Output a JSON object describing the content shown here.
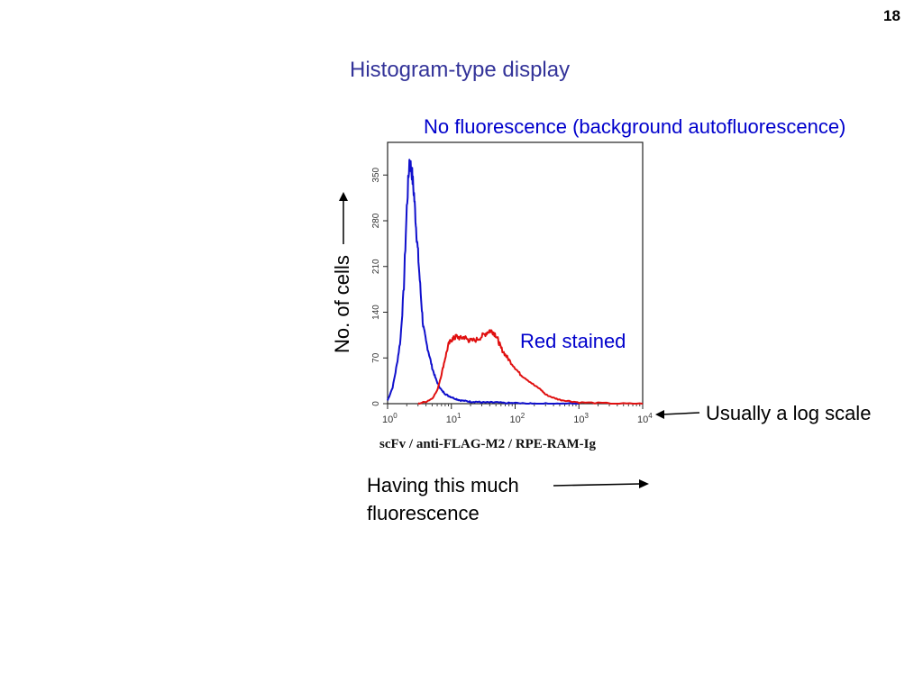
{
  "slide": {
    "page_number": "18",
    "title": "Histogram-type display",
    "annotations": {
      "no_fluorescence": "No fluorescence (background autofluorescence)",
      "red_stained": "Red stained",
      "log_scale": "Usually a log scale",
      "having_line1": "Having this much",
      "having_line2": "fluorescence",
      "y_axis_note": "No. of cells"
    },
    "colors": {
      "title": "#333399",
      "annotation_blue": "#0000cc"
    }
  },
  "chart_data": {
    "type": "line",
    "title": "",
    "xlabel": "scFv / anti-FLAG-M2 / RPE-RAM-Ig",
    "ylabel": "No. of cells",
    "x_scale": "log",
    "xlim": [
      1,
      10000
    ],
    "ylim": [
      0,
      400
    ],
    "x_ticks": [
      {
        "base": "10",
        "exp": "0"
      },
      {
        "base": "10",
        "exp": "1"
      },
      {
        "base": "10",
        "exp": "2"
      },
      {
        "base": "10",
        "exp": "3"
      },
      {
        "base": "10",
        "exp": "4"
      }
    ],
    "y_ticks": [
      "0",
      "70",
      "140",
      "210",
      "280",
      "350"
    ],
    "grid": false,
    "series": [
      {
        "color": "#1010cc",
        "x": [
          1,
          1.2,
          1.4,
          1.6,
          1.8,
          2.0,
          2.2,
          2.4,
          2.6,
          2.8,
          3.0,
          3.3,
          3.6,
          4.0,
          4.5,
          5.0,
          5.6,
          6.3,
          7.1,
          8.0,
          9.0,
          10,
          12,
          14,
          17,
          20,
          25,
          30,
          40,
          50,
          70,
          100,
          150,
          200,
          300,
          500,
          1000
        ],
        "y": [
          5,
          25,
          60,
          100,
          180,
          300,
          372,
          355,
          320,
          270,
          230,
          170,
          120,
          95,
          75,
          55,
          40,
          28,
          20,
          15,
          12,
          10,
          7,
          5,
          4,
          3,
          3,
          2,
          2,
          2,
          1,
          1,
          0,
          0,
          0,
          0,
          0
        ]
      },
      {
        "color": "#e01010",
        "x": [
          3,
          4,
          5,
          6,
          7,
          8,
          9,
          10,
          11,
          12,
          14,
          16,
          18,
          20,
          25,
          30,
          35,
          40,
          45,
          50,
          55,
          60,
          70,
          80,
          100,
          120,
          150,
          200,
          250,
          300,
          400,
          500,
          700,
          1000,
          2000,
          5000,
          10000
        ],
        "y": [
          0,
          3,
          8,
          20,
          45,
          70,
          90,
          98,
          100,
          103,
          100,
          102,
          98,
          96,
          98,
          103,
          108,
          112,
          110,
          105,
          95,
          85,
          75,
          67,
          55,
          45,
          38,
          28,
          22,
          14,
          9,
          6,
          4,
          2,
          1,
          0,
          0
        ]
      }
    ]
  }
}
